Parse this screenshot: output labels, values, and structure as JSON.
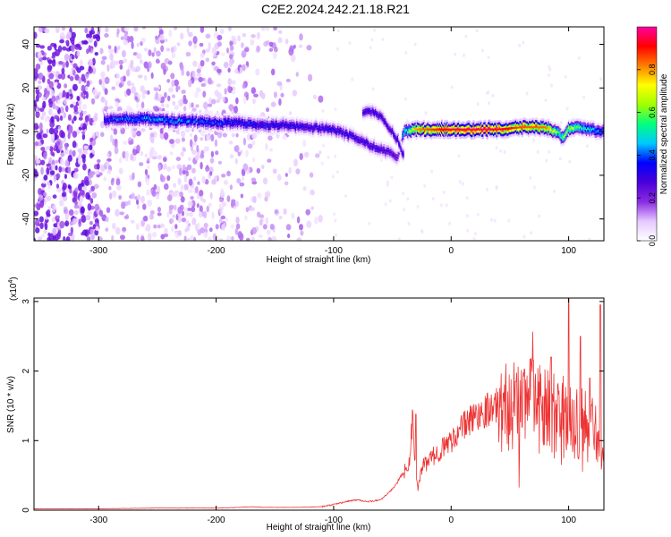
{
  "title": "C2E2.2024.242.21.18.R21",
  "colorbar": {
    "label": "Normalized spectral amplitude",
    "ticks": [
      "0.0",
      "0.2",
      "0.4",
      "0.6",
      "0.8"
    ],
    "tick_values": [
      0.0,
      0.2,
      0.4,
      0.6,
      0.8
    ],
    "range": [
      0,
      1
    ],
    "colormap": [
      "#ffffff",
      "#e6c8ff",
      "#8a2be2",
      "#4b00d8",
      "#0000ff",
      "#00c8ff",
      "#00ff7f",
      "#a0ff00",
      "#ffff00",
      "#ff8000",
      "#ff0000",
      "#ff00a0"
    ]
  },
  "chart_data": [
    {
      "type": "heatmap",
      "xlabel": "Height of straight line (km)",
      "ylabel": "Frequency (Hz)",
      "xlim": [
        -355,
        130
      ],
      "ylim": [
        -50,
        48
      ],
      "xticks": [
        -300,
        -200,
        -100,
        0,
        100
      ],
      "yticks": [
        -40,
        -20,
        0,
        20,
        40
      ],
      "xtick_labels": [
        "-300",
        "-200",
        "-100",
        "0",
        "100"
      ],
      "ytick_labels": [
        "-40",
        "-20",
        "0",
        "20",
        "40"
      ],
      "ridge": {
        "x": [
          -295,
          -280,
          -260,
          -240,
          -220,
          -200,
          -180,
          -160,
          -140,
          -120,
          -100,
          -85,
          -70,
          -55,
          -45,
          -40,
          -30,
          -20,
          -10,
          0,
          20,
          40,
          60,
          80,
          90,
          95,
          100,
          110,
          120,
          130
        ],
        "freq": [
          5,
          6,
          6,
          5,
          5,
          4,
          4,
          3,
          3,
          2,
          1,
          -2,
          -6,
          -9,
          -12,
          0,
          1,
          1,
          1,
          1,
          1,
          1,
          2,
          2,
          0,
          -3,
          1,
          2,
          1,
          0
        ],
        "amplitude": [
          0.35,
          0.4,
          0.45,
          0.42,
          0.4,
          0.38,
          0.36,
          0.34,
          0.33,
          0.3,
          0.32,
          0.3,
          0.3,
          0.28,
          0.25,
          0.5,
          0.75,
          0.8,
          0.85,
          0.9,
          0.92,
          0.9,
          0.8,
          0.78,
          0.6,
          0.55,
          0.65,
          0.55,
          0.45,
          0.4
        ]
      },
      "secondary_ridge": {
        "x": [
          -75,
          -65,
          -55,
          -45,
          -40
        ],
        "freq": [
          9,
          9,
          4,
          -4,
          -12
        ]
      },
      "noise_region_x": [
        -355,
        -110
      ]
    },
    {
      "type": "line",
      "xlabel": "Height of straight line (km)",
      "ylabel": "SNR (10 * v/v)",
      "y_multiplier": "(x10",
      "y_multiplier_exp": "4",
      "y_multiplier_close": ")",
      "xlim": [
        -355,
        130
      ],
      "ylim": [
        0,
        3.05
      ],
      "xticks": [
        -300,
        -200,
        -100,
        0,
        100
      ],
      "yticks": [
        0,
        1,
        2,
        3
      ],
      "xtick_labels": [
        "-300",
        "-200",
        "-100",
        "0",
        "100"
      ],
      "ytick_labels": [
        "0",
        "1",
        "2",
        "3"
      ],
      "color": "#ee3333",
      "series": [
        {
          "x": [
            -355,
            -300,
            -250,
            -200,
            -180,
            -170,
            -160,
            -130,
            -110,
            -100,
            -90,
            -80,
            -70,
            -60,
            -50,
            -40,
            -35,
            -33,
            -30,
            -28,
            -25,
            -20,
            -10,
            0,
            10,
            20,
            30,
            40,
            50,
            60,
            70,
            80,
            90,
            100,
            110,
            120,
            130
          ],
          "values": [
            0.02,
            0.02,
            0.03,
            0.03,
            0.04,
            0.05,
            0.04,
            0.04,
            0.05,
            0.08,
            0.12,
            0.15,
            0.12,
            0.15,
            0.3,
            0.55,
            0.7,
            1.3,
            0.6,
            0.3,
            0.6,
            0.7,
            0.85,
            1.0,
            1.2,
            1.35,
            1.45,
            1.5,
            1.5,
            1.55,
            1.5,
            1.45,
            1.4,
            1.35,
            1.3,
            1.2,
            1.0
          ],
          "peaks": [
            [
              -30,
              1.38
            ],
            [
              55,
              1.85
            ],
            [
              70,
              2.15
            ],
            [
              85,
              2.2
            ],
            [
              100,
              3.05
            ],
            [
              110,
              2.5
            ],
            [
              118,
              1.9
            ],
            [
              127,
              2.95
            ]
          ]
        }
      ]
    }
  ]
}
